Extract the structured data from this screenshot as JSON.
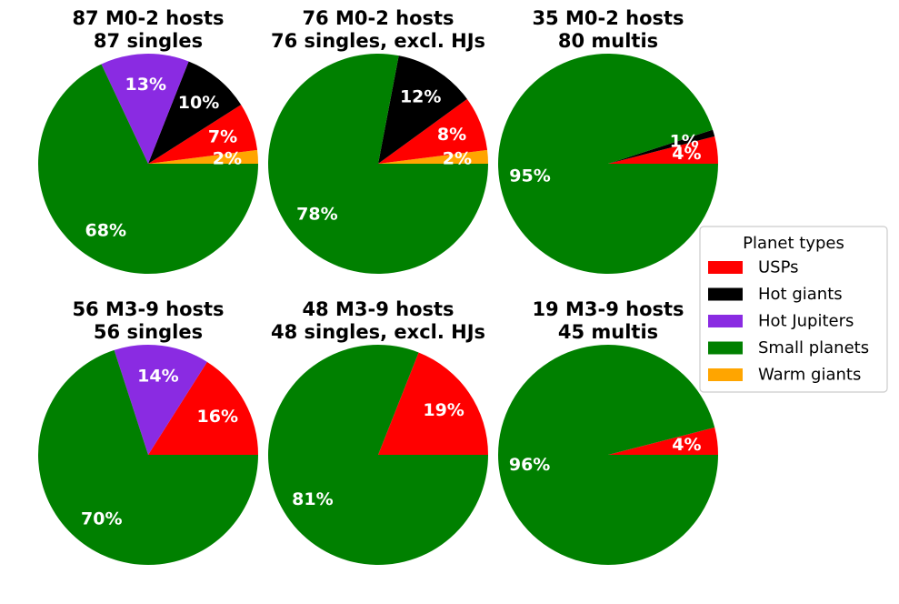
{
  "chart_data": {
    "type": "pie",
    "legend": {
      "title": "Planet types",
      "placement": "right",
      "entries": [
        {
          "name": "USPs",
          "color": "#ff0000"
        },
        {
          "name": "Hot giants",
          "color": "#000000"
        },
        {
          "name": "Hot Jupiters",
          "color": "#8a2be2"
        },
        {
          "name": "Small planets",
          "color": "#008000"
        },
        {
          "name": "Warm giants",
          "color": "#ffa500"
        }
      ]
    },
    "panels": [
      {
        "title_line1": "87 M0-2 hosts",
        "title_line2": "87 singles",
        "slices": [
          {
            "category": "Warm giants",
            "value": 2,
            "label": "2%"
          },
          {
            "category": "USPs",
            "value": 7,
            "label": "7%"
          },
          {
            "category": "Hot giants",
            "value": 10,
            "label": "10%"
          },
          {
            "category": "Hot Jupiters",
            "value": 13,
            "label": "13%"
          },
          {
            "category": "Small planets",
            "value": 68,
            "label": "68%"
          }
        ]
      },
      {
        "title_line1": "76 M0-2 hosts",
        "title_line2": "76 singles, excl. HJs",
        "slices": [
          {
            "category": "Warm giants",
            "value": 2,
            "label": "2%"
          },
          {
            "category": "USPs",
            "value": 8,
            "label": "8%"
          },
          {
            "category": "Hot giants",
            "value": 12,
            "label": "12%"
          },
          {
            "category": "Small planets",
            "value": 78,
            "label": "78%"
          }
        ]
      },
      {
        "title_line1": "35 M0-2 hosts",
        "title_line2": "80 multis",
        "slices": [
          {
            "category": "USPs",
            "value": 4,
            "label": "4%"
          },
          {
            "category": "Hot giants",
            "value": 1,
            "label": "1%"
          },
          {
            "category": "Small planets",
            "value": 95,
            "label": "95%"
          }
        ]
      },
      {
        "title_line1": "56 M3-9 hosts",
        "title_line2": "56 singles",
        "slices": [
          {
            "category": "USPs",
            "value": 16,
            "label": "16%"
          },
          {
            "category": "Hot Jupiters",
            "value": 14,
            "label": "14%"
          },
          {
            "category": "Small planets",
            "value": 70,
            "label": "70%"
          }
        ]
      },
      {
        "title_line1": "48 M3-9 hosts",
        "title_line2": "48 singles, excl. HJs",
        "slices": [
          {
            "category": "USPs",
            "value": 19,
            "label": "19%"
          },
          {
            "category": "Small planets",
            "value": 81,
            "label": "81%"
          }
        ]
      },
      {
        "title_line1": "19 M3-9 hosts",
        "title_line2": "45 multis",
        "slices": [
          {
            "category": "USPs",
            "value": 4,
            "label": "4%"
          },
          {
            "category": "Small planets",
            "value": 96,
            "label": "96%"
          }
        ]
      }
    ]
  }
}
